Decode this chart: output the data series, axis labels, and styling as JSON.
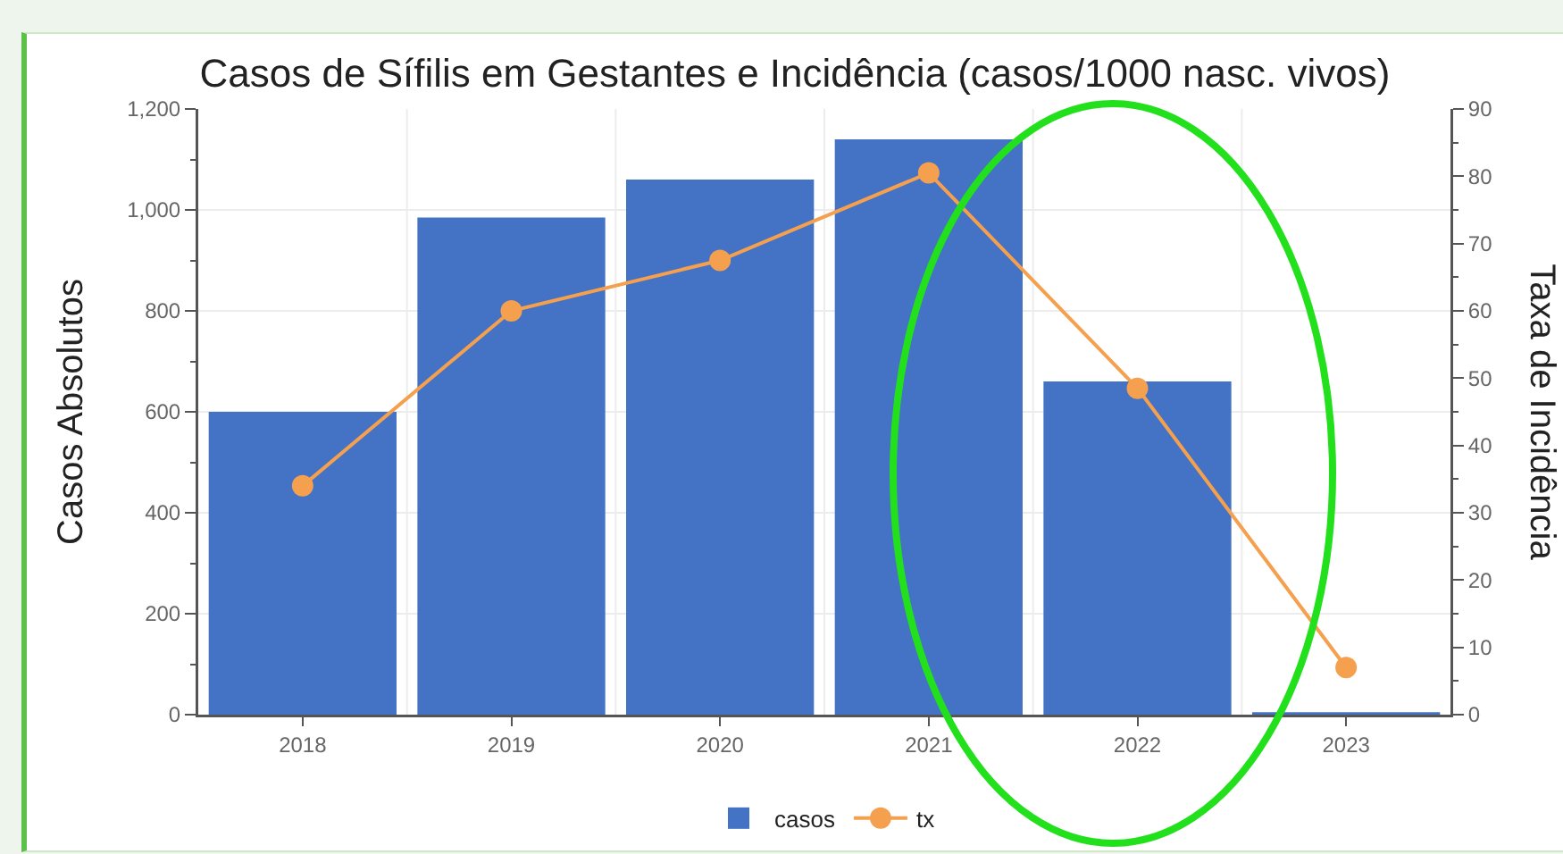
{
  "chart_data": {
    "type": "bar",
    "title": "Casos de Sífilis em Gestantes e Incidência (casos/1000 nasc. vivos)",
    "ylabel": "Casos Absolutos",
    "y2label": "Taxa de Incidência",
    "categories": [
      "2018",
      "2019",
      "2020",
      "2021",
      "2022",
      "2023"
    ],
    "series": [
      {
        "name": "casos",
        "type": "bar",
        "color": "#4472c4",
        "values": [
          600,
          985,
          1060,
          1140,
          660,
          5
        ]
      },
      {
        "name": "tx",
        "type": "line",
        "axis": "y2",
        "color": "#f5a04e",
        "values": [
          34,
          60,
          67.5,
          80.5,
          48.5,
          7
        ]
      }
    ],
    "ylim": [
      0,
      1200
    ],
    "yticks": [
      0,
      {
        "value": 100,
        "label": null
      },
      200,
      {
        "value": 300,
        "label": null
      },
      400,
      {
        "value": 500,
        "label": null
      },
      600,
      {
        "value": 700,
        "label": null
      },
      800,
      {
        "value": 900,
        "label": null
      },
      {
        "value": 1000,
        "label": "1,000"
      },
      {
        "value": 1100,
        "label": null
      },
      {
        "value": 1200,
        "label": "1,200"
      }
    ],
    "y2lim": [
      0,
      90
    ],
    "y2ticks": [
      0,
      {
        "value": 5,
        "label": null
      },
      10,
      {
        "value": 15,
        "label": null
      },
      20,
      {
        "value": 25,
        "label": null
      },
      30,
      {
        "value": 35,
        "label": null
      },
      40,
      {
        "value": 45,
        "label": null
      },
      50,
      {
        "value": 55,
        "label": null
      },
      60,
      {
        "value": 65,
        "label": null
      },
      70,
      {
        "value": 75,
        "label": null
      },
      80,
      {
        "value": 85,
        "label": null
      },
      90
    ],
    "grid": true,
    "legend": "bottom",
    "marker": "circle"
  }
}
